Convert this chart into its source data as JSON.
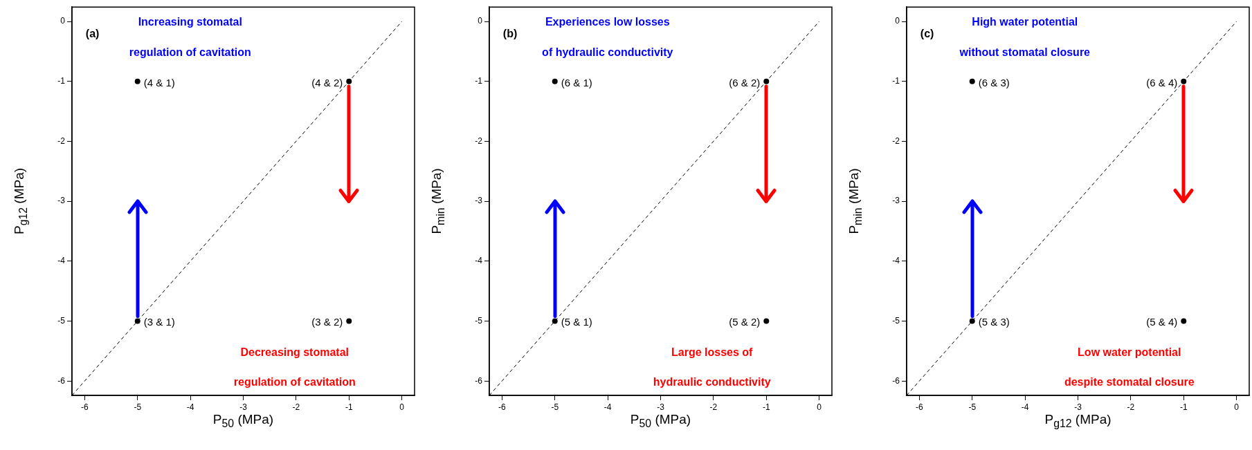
{
  "chart_data": [
    {
      "type": "scatter",
      "xlabel": "P$_{50}$ (MPa)",
      "ylabel": "P$_{g12}$ (MPa)",
      "xlim": [
        -6.24,
        0.24
      ],
      "ylim": [
        -6.24,
        0.24
      ],
      "xticks": [
        -6,
        -5,
        -4,
        -3,
        -2,
        -1,
        0
      ],
      "yticks": [
        -6,
        -5,
        -4,
        -3,
        -2,
        -1,
        0
      ],
      "marker": "circle",
      "legend": false,
      "series": [
        {
          "color": "#000000",
          "x": [
            -5,
            -1,
            -5,
            -1
          ],
          "values": [
            -1,
            -1,
            -5,
            -5
          ]
        },
        {
          "type": "line",
          "color": "#000000",
          "line_style": "dashed",
          "marker": "none",
          "x": [
            -6.24,
            0
          ],
          "values": [
            -6.24,
            0
          ]
        }
      ],
      "annotations": [
        "(a)",
        "Increasing stomatal",
        "regulation of cavitation",
        "Decreasing stomatal",
        "regulation of cavitation",
        "(4 & 1)",
        "(4 & 2)",
        "(3 & 1)",
        "(3 & 2)"
      ]
    },
    {
      "type": "scatter",
      "xlabel": "P$_{50}$ (MPa)",
      "ylabel": "P$_{min}$ (MPa)",
      "xlim": [
        -6.24,
        0.24
      ],
      "ylim": [
        -6.24,
        0.24
      ],
      "xticks": [
        -6,
        -5,
        -4,
        -3,
        -2,
        -1,
        0
      ],
      "yticks": [
        -6,
        -5,
        -4,
        -3,
        -2,
        -1,
        0
      ],
      "marker": "circle",
      "legend": false,
      "series": [
        {
          "color": "#000000",
          "x": [
            -5,
            -1,
            -5,
            -1
          ],
          "values": [
            -1,
            -1,
            -5,
            -5
          ]
        },
        {
          "type": "line",
          "color": "#000000",
          "line_style": "dashed",
          "marker": "none",
          "x": [
            -6.24,
            0
          ],
          "values": [
            -6.24,
            0
          ]
        }
      ],
      "annotations": [
        "(b)",
        "Experiences low losses",
        "of hydraulic conductivity",
        "Large losses of",
        "hydraulic conductivity",
        "(6 & 1)",
        "(6 & 2)",
        "(5 & 1)",
        "(5 & 2)"
      ]
    },
    {
      "type": "scatter",
      "xlabel": "P$_{g12}$ (MPa)",
      "ylabel": "P$_{min}$ (MPa)",
      "xlim": [
        -6.24,
        0.24
      ],
      "ylim": [
        -6.24,
        0.24
      ],
      "xticks": [
        -6,
        -5,
        -4,
        -3,
        -2,
        -1,
        0
      ],
      "yticks": [
        -6,
        -5,
        -4,
        -3,
        -2,
        -1,
        0
      ],
      "marker": "circle",
      "legend": false,
      "series": [
        {
          "color": "#000000",
          "x": [
            -5,
            -1,
            -5,
            -1
          ],
          "values": [
            -1,
            -1,
            -5,
            -5
          ]
        },
        {
          "type": "line",
          "color": "#000000",
          "line_style": "dashed",
          "marker": "none",
          "x": [
            -6.24,
            0
          ],
          "values": [
            -6.24,
            0
          ]
        }
      ],
      "annotations": [
        "(c)",
        "High water potential",
        "without stomatal closure",
        "Low water potential",
        "despite stomatal closure",
        "(6 & 3)",
        "(6 & 4)",
        "(5 & 3)",
        "(5 & 4)"
      ]
    }
  ]
}
